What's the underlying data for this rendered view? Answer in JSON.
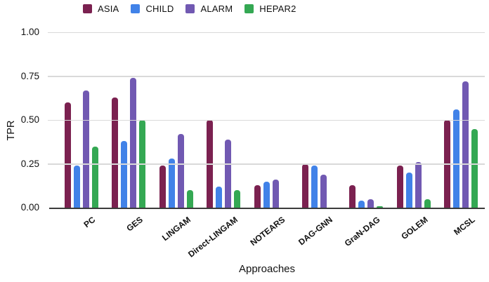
{
  "chart_data": {
    "type": "bar",
    "title": "",
    "xlabel": "Approaches",
    "ylabel": "TPR",
    "ylim": [
      0,
      1.0
    ],
    "grid": true,
    "legend_position": "top",
    "yticks": [
      {
        "v": 0.0,
        "label": "0.00"
      },
      {
        "v": 0.25,
        "label": "0.25"
      },
      {
        "v": 0.5,
        "label": "0.50"
      },
      {
        "v": 0.75,
        "label": "0.75"
      },
      {
        "v": 1.0,
        "label": "1.00"
      }
    ],
    "categories": [
      "PC",
      "GES",
      "LINGAM",
      "Direct-LINGAM",
      "NOTEARS",
      "DAG-GNN",
      "GraN-DAG",
      "GOLEM",
      "MCSL"
    ],
    "series": [
      {
        "name": "ASIA",
        "color": "#7B2150",
        "values": [
          0.6,
          0.63,
          0.24,
          0.5,
          0.13,
          0.25,
          0.13,
          0.24,
          0.5
        ]
      },
      {
        "name": "CHILD",
        "color": "#4182E8",
        "values": [
          0.24,
          0.38,
          0.28,
          0.12,
          0.15,
          0.24,
          0.04,
          0.2,
          0.56
        ]
      },
      {
        "name": "ALARM",
        "color": "#7159B2",
        "values": [
          0.67,
          0.74,
          0.42,
          0.39,
          0.16,
          0.19,
          0.05,
          0.26,
          0.72
        ]
      },
      {
        "name": "HEPAR2",
        "color": "#34A853",
        "values": [
          0.35,
          0.5,
          0.1,
          0.1,
          0.0,
          0.0,
          0.01,
          0.05,
          0.45
        ]
      }
    ],
    "colors": {
      "gridline": "#d9d9d9",
      "axis_baseline": "#3b3b3b",
      "text": "#111111"
    }
  }
}
